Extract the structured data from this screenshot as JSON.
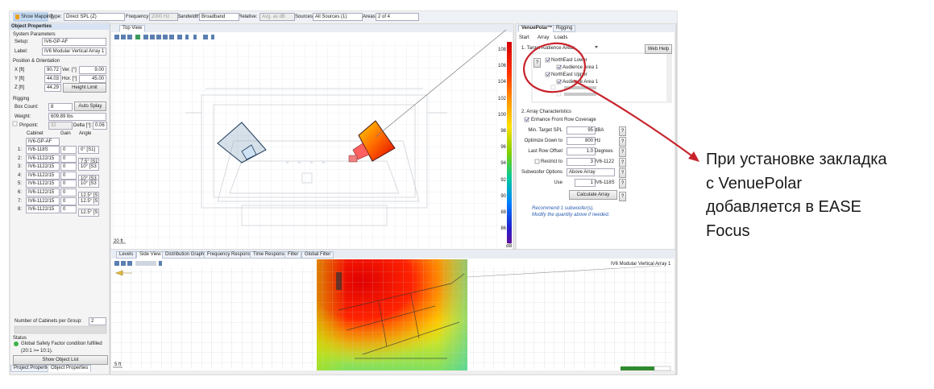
{
  "toolbar": {
    "show_mapping": "Show Mapping",
    "type_label": "Type:",
    "type": "Direct SPL (Z)",
    "frequency_label": "Frequency:",
    "frequency": "2000 Hz",
    "bandwidth_label": "Bandwidth:",
    "bandwidth": "Broadband",
    "relative_label": "Relative:",
    "relative": "Avg. as dB",
    "sources_label": "Sources:",
    "sources": "All Sources (1)",
    "areas_label": "Areas:",
    "areas": "2 of 4"
  },
  "object_properties": {
    "title": "Object Properties",
    "system_parameters": "System Parameters",
    "setup_label": "Setup:",
    "setup": "IV6-GP-AF",
    "label_label": "Label:",
    "label": "IV6 Modular Vertical Array 1",
    "position_orientation": "Position & Orientation",
    "x_label": "X [ft]",
    "x": "90.72",
    "ver_label": "Ver. [°]",
    "ver": "9.00",
    "y_label": "Y [ft]",
    "y": "44.03",
    "hor_label": "Hor. [°]",
    "hor": "45.00",
    "z_label": "Z [ft]",
    "z": "44.29",
    "height_limit": "Height Limit",
    "rigging": "Rigging",
    "box_count_label": "Box Count:",
    "box_count": "8",
    "auto_splay": "Auto Splay",
    "weight_label": "Weight:",
    "weight": "609.89 lbs",
    "pinpoint_label": "Pinpoint:",
    "pinpoint": "32",
    "delta_label": "Delta [°]:",
    "delta": "0.06",
    "columns": [
      "Cabinet",
      "Gain",
      "Angle"
    ],
    "top_cabinet": "IV6-GP-AF",
    "rows": [
      [
        "1:",
        "IV6-118S",
        "0",
        "0° [S1]"
      ],
      [
        "2:",
        "IV6-1122/15",
        "0",
        "7.5° [S1]"
      ],
      [
        "3:",
        "IV6-1122/15",
        "0",
        "10° [S3"
      ],
      [
        "4:",
        "IV6-1122/15",
        "0",
        "10° [S3"
      ],
      [
        "5:",
        "IV6-1122/15",
        "0",
        "10° [S3"
      ],
      [
        "6:",
        "IV6-1122/15",
        "0",
        "12.5° [S"
      ],
      [
        "7:",
        "IV6-1122/15",
        "0",
        "12.5° [S"
      ],
      [
        "8:",
        "IV6-1122/15",
        "0",
        "12.5° [S"
      ]
    ],
    "cabinets_per_group_label": "Number of Cabinets per Group:",
    "cabinets_per_group": "2",
    "status": "Status",
    "status_message": "Global Safety Factor condition fulfilled (20:1 >= 10:1).",
    "show_object_list": "Show Object List",
    "tabs": [
      "Project Properties",
      "Object Properties"
    ]
  },
  "top_view": {
    "tab": "Top View",
    "scale": "20 ft",
    "legend": {
      "ticks": [
        108,
        106,
        104,
        102,
        100,
        98,
        96,
        94,
        92,
        90,
        88,
        86
      ],
      "unit": "dB"
    }
  },
  "bottom_view": {
    "tabs": [
      "Levels",
      "Side View",
      "Distribution Graph",
      "Frequency Response",
      "Time Response",
      "Filter",
      "Global Filter"
    ],
    "object": "IV6 Modular Vertical Array 1",
    "scale": "5 ft"
  },
  "venuepolar": {
    "tabs": [
      "VenuePolar™",
      "Rigging"
    ],
    "subtabs": [
      "Start",
      "Array",
      "Loads"
    ],
    "section1": "1. Target Audience Areas",
    "web_help": "Web Help",
    "help": "?",
    "tree": [
      "NorthEast Lower",
      "Audience Area 1",
      "NorthEast Upper",
      "Audience Area 1"
    ],
    "section2": "2. Array Characteristics",
    "enhance": "Enhance Front Row Coverage",
    "min_spl_label": "Min. Target SPL",
    "min_spl": "95",
    "min_spl_unit": "dBA",
    "optimize_label": "Optimize Down to",
    "optimize": "800",
    "optimize_unit": "Hz",
    "offset_label": "Last Row Offset",
    "offset": "1.0",
    "offset_unit": "Degrees",
    "restrict_label": "Restrict to",
    "restrict": "3",
    "restrict_unit": "IV6-1122",
    "sub_label": "Subwoofer Options",
    "sub": "Above Array",
    "use_label": "Use",
    "use": "1",
    "use_unit": "IV6-118S",
    "calculate": "Calculate Array",
    "recommend": "Recommend 1 subwoofer(s).",
    "modify": "Modify the quantity above if needed."
  },
  "annotation": {
    "lines": [
      "При установке закладка",
      "с VenuePolar",
      "добавляется в EASE",
      "Focus"
    ]
  }
}
